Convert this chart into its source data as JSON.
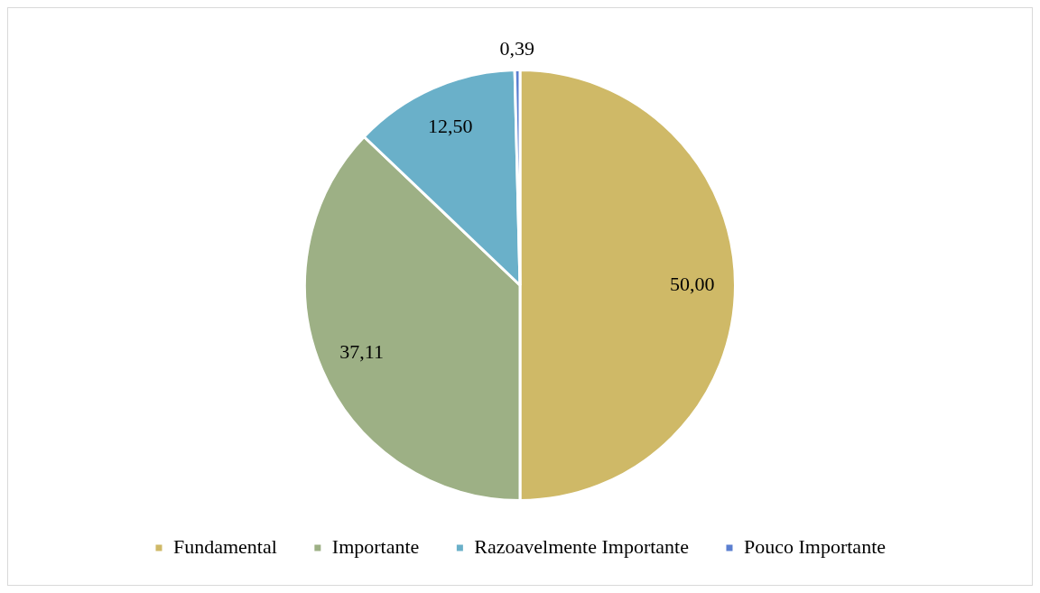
{
  "chart_data": {
    "type": "pie",
    "categories": [
      "Fundamental",
      "Importante",
      "Razoavelmente Importante",
      "Pouco Importante"
    ],
    "values": [
      50.0,
      37.11,
      12.5,
      0.39
    ],
    "value_labels": [
      "50,00",
      "37,11",
      "12,50",
      "0,39"
    ],
    "colors": [
      "#cfb967",
      "#9db085",
      "#6ab0c9",
      "#5b7fd0"
    ],
    "legend": "bottom"
  }
}
